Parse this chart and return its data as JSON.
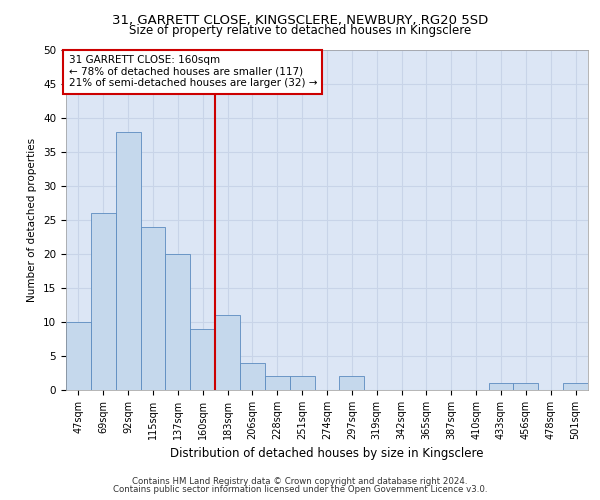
{
  "title1": "31, GARRETT CLOSE, KINGSCLERE, NEWBURY, RG20 5SD",
  "title2": "Size of property relative to detached houses in Kingsclere",
  "xlabel": "Distribution of detached houses by size in Kingsclere",
  "ylabel": "Number of detached properties",
  "categories": [
    "47sqm",
    "69sqm",
    "92sqm",
    "115sqm",
    "137sqm",
    "160sqm",
    "183sqm",
    "206sqm",
    "228sqm",
    "251sqm",
    "274sqm",
    "297sqm",
    "319sqm",
    "342sqm",
    "365sqm",
    "387sqm",
    "410sqm",
    "433sqm",
    "456sqm",
    "478sqm",
    "501sqm"
  ],
  "values": [
    10,
    26,
    38,
    24,
    20,
    9,
    11,
    4,
    2,
    2,
    0,
    2,
    0,
    0,
    0,
    0,
    0,
    1,
    1,
    0,
    1
  ],
  "bar_color": "#c5d8ec",
  "bar_edgecolor": "#5b8bbf",
  "highlight_index": 5,
  "highlight_line_color": "#cc0000",
  "highlight_box_color": "#cc0000",
  "annotation_line1": "31 GARRETT CLOSE: 160sqm",
  "annotation_line2": "← 78% of detached houses are smaller (117)",
  "annotation_line3": "21% of semi-detached houses are larger (32) →",
  "ylim": [
    0,
    50
  ],
  "yticks": [
    0,
    5,
    10,
    15,
    20,
    25,
    30,
    35,
    40,
    45,
    50
  ],
  "grid_color": "#c8d4e8",
  "bg_color": "#dce6f5",
  "footer1": "Contains HM Land Registry data © Crown copyright and database right 2024.",
  "footer2": "Contains public sector information licensed under the Open Government Licence v3.0."
}
